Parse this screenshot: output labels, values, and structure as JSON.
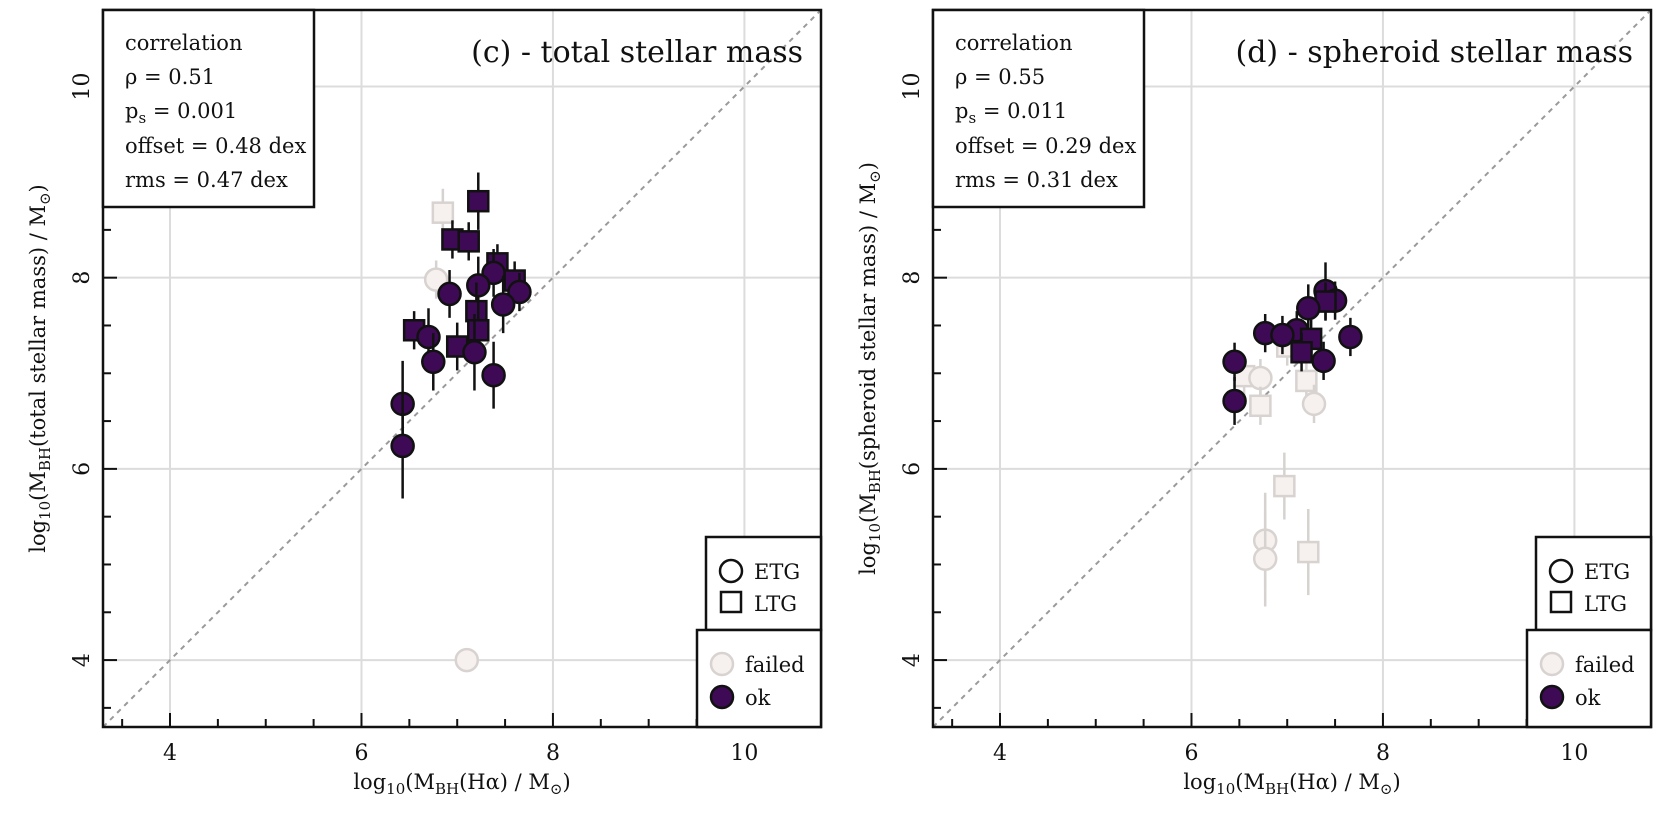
{
  "chart_data": [
    {
      "type": "scatter",
      "title": "(c) - total stellar mass",
      "xlabel": "log10(MBH(Hα) / M⊙)",
      "ylabel": "log10(MBH(total stellar mass) / M⊙)",
      "xlim": [
        3.3,
        10.8
      ],
      "ylim": [
        3.3,
        10.8
      ],
      "xticks": [
        4,
        6,
        8,
        10
      ],
      "yticks": [
        4,
        6,
        8,
        10
      ],
      "grid": true,
      "one_to_one_line": true,
      "stats": {
        "heading": "correlation",
        "rho": "ρ = 0.51",
        "ps": "= 0.001",
        "offset": "offset = 0.48 dex",
        "rms": "rms = 0.47 dex"
      },
      "legend_shape": {
        "position": "bottom-right",
        "items": [
          "ETG",
          "LTG"
        ]
      },
      "legend_status": {
        "position": "bottom-right",
        "items": [
          "failed",
          "ok"
        ]
      },
      "colors": {
        "ok": "#3e0a55",
        "failed": "#f6f0ee",
        "failed_edge": "#d8d2d0",
        "error_ok": "#111111",
        "error_failed": "#d6d2d0"
      },
      "points": [
        {
          "x": 6.85,
          "y": 8.68,
          "shape": "LTG",
          "status": "failed",
          "err": 0.25
        },
        {
          "x": 6.78,
          "y": 7.98,
          "shape": "ETG",
          "status": "failed",
          "err": 0.2
        },
        {
          "x": 7.1,
          "y": 4.0,
          "shape": "ETG",
          "status": "failed",
          "err": 0
        },
        {
          "x": 7.22,
          "y": 8.8,
          "shape": "LTG",
          "status": "ok",
          "err": 0.3
        },
        {
          "x": 6.95,
          "y": 8.4,
          "shape": "LTG",
          "status": "ok",
          "err": 0.2
        },
        {
          "x": 7.12,
          "y": 8.38,
          "shape": "LTG",
          "status": "ok",
          "err": 0.2
        },
        {
          "x": 7.42,
          "y": 8.15,
          "shape": "LTG",
          "status": "ok",
          "err": 0.2
        },
        {
          "x": 7.38,
          "y": 8.05,
          "shape": "ETG",
          "status": "ok",
          "err": 0.25
        },
        {
          "x": 7.6,
          "y": 7.97,
          "shape": "LTG",
          "status": "ok",
          "err": 0.2
        },
        {
          "x": 7.22,
          "y": 7.92,
          "shape": "ETG",
          "status": "ok",
          "err": 0.3
        },
        {
          "x": 7.65,
          "y": 7.85,
          "shape": "ETG",
          "status": "ok",
          "err": 0.2
        },
        {
          "x": 6.92,
          "y": 7.83,
          "shape": "ETG",
          "status": "ok",
          "err": 0.25
        },
        {
          "x": 7.48,
          "y": 7.72,
          "shape": "ETG",
          "status": "ok",
          "err": 0.3
        },
        {
          "x": 7.2,
          "y": 7.65,
          "shape": "LTG",
          "status": "ok",
          "err": 0.3
        },
        {
          "x": 7.22,
          "y": 7.45,
          "shape": "LTG",
          "status": "ok",
          "err": 0.3
        },
        {
          "x": 6.55,
          "y": 7.45,
          "shape": "LTG",
          "status": "ok",
          "err": 0.2
        },
        {
          "x": 6.7,
          "y": 7.38,
          "shape": "ETG",
          "status": "ok",
          "err": 0.3
        },
        {
          "x": 7.0,
          "y": 7.28,
          "shape": "LTG",
          "status": "ok",
          "err": 0.25
        },
        {
          "x": 7.18,
          "y": 7.22,
          "shape": "ETG",
          "status": "ok",
          "err": 0.4
        },
        {
          "x": 6.75,
          "y": 7.12,
          "shape": "ETG",
          "status": "ok",
          "err": 0.3
        },
        {
          "x": 7.38,
          "y": 6.98,
          "shape": "ETG",
          "status": "ok",
          "err": 0.35
        },
        {
          "x": 6.43,
          "y": 6.68,
          "shape": "ETG",
          "status": "ok",
          "err": 0.45
        },
        {
          "x": 6.43,
          "y": 6.24,
          "shape": "ETG",
          "status": "ok",
          "err": 0.55
        }
      ]
    },
    {
      "type": "scatter",
      "title": "(d) - spheroid stellar mass",
      "xlabel": "log10(MBH(Hα) / M⊙)",
      "ylabel": "log10(MBH(spheroid stellar mass) / M⊙)",
      "xlim": [
        3.3,
        10.8
      ],
      "ylim": [
        3.3,
        10.8
      ],
      "xticks": [
        4,
        6,
        8,
        10
      ],
      "yticks": [
        4,
        6,
        8,
        10
      ],
      "grid": true,
      "one_to_one_line": true,
      "stats": {
        "heading": "correlation",
        "rho": "ρ = 0.55",
        "ps": "= 0.011",
        "offset": "offset = 0.29 dex",
        "rms": "rms = 0.31 dex"
      },
      "legend_shape": {
        "position": "bottom-right",
        "items": [
          "ETG",
          "LTG"
        ]
      },
      "legend_status": {
        "position": "bottom-right",
        "items": [
          "failed",
          "ok"
        ]
      },
      "colors": {
        "ok": "#3e0a55",
        "failed": "#f6f0ee",
        "failed_edge": "#d8d2d0",
        "error_ok": "#111111",
        "error_failed": "#d6d2d0"
      },
      "points": [
        {
          "x": 7.0,
          "y": 7.28,
          "shape": "LTG",
          "status": "failed",
          "err": 0.2
        },
        {
          "x": 6.55,
          "y": 6.97,
          "shape": "LTG",
          "status": "failed",
          "err": 0.2
        },
        {
          "x": 6.72,
          "y": 6.95,
          "shape": "ETG",
          "status": "failed",
          "err": 0.2
        },
        {
          "x": 7.2,
          "y": 6.92,
          "shape": "LTG",
          "status": "failed",
          "err": 0.2
        },
        {
          "x": 6.72,
          "y": 6.66,
          "shape": "LTG",
          "status": "failed",
          "err": 0.2
        },
        {
          "x": 7.28,
          "y": 6.68,
          "shape": "ETG",
          "status": "failed",
          "err": 0.2
        },
        {
          "x": 6.97,
          "y": 5.82,
          "shape": "LTG",
          "status": "failed",
          "err": 0.35
        },
        {
          "x": 6.77,
          "y": 5.25,
          "shape": "ETG",
          "status": "failed",
          "err": 0.5
        },
        {
          "x": 6.77,
          "y": 5.06,
          "shape": "ETG",
          "status": "failed",
          "err": 0.5
        },
        {
          "x": 7.22,
          "y": 5.13,
          "shape": "LTG",
          "status": "failed",
          "err": 0.45
        },
        {
          "x": 7.4,
          "y": 7.86,
          "shape": "ETG",
          "status": "ok",
          "err": 0.3
        },
        {
          "x": 7.5,
          "y": 7.76,
          "shape": "ETG",
          "status": "ok",
          "err": 0.2
        },
        {
          "x": 7.4,
          "y": 7.75,
          "shape": "LTG",
          "status": "ok",
          "err": 0.2
        },
        {
          "x": 7.22,
          "y": 7.68,
          "shape": "ETG",
          "status": "ok",
          "err": 0.25
        },
        {
          "x": 7.1,
          "y": 7.45,
          "shape": "ETG",
          "status": "ok",
          "err": 0.2
        },
        {
          "x": 6.77,
          "y": 7.42,
          "shape": "ETG",
          "status": "ok",
          "err": 0.2
        },
        {
          "x": 6.95,
          "y": 7.4,
          "shape": "ETG",
          "status": "ok",
          "err": 0.2
        },
        {
          "x": 7.66,
          "y": 7.38,
          "shape": "ETG",
          "status": "ok",
          "err": 0.2
        },
        {
          "x": 7.25,
          "y": 7.36,
          "shape": "LTG",
          "status": "ok",
          "err": 0.2
        },
        {
          "x": 7.15,
          "y": 7.22,
          "shape": "LTG",
          "status": "ok",
          "err": 0.2
        },
        {
          "x": 7.38,
          "y": 7.13,
          "shape": "ETG",
          "status": "ok",
          "err": 0.2
        },
        {
          "x": 6.45,
          "y": 7.12,
          "shape": "ETG",
          "status": "ok",
          "err": 0.2
        },
        {
          "x": 6.45,
          "y": 6.71,
          "shape": "ETG",
          "status": "ok",
          "err": 0.25
        }
      ]
    }
  ]
}
